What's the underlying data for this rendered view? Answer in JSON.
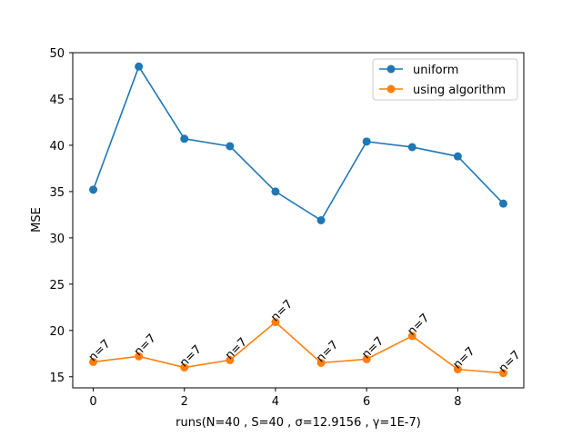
{
  "chart_data": {
    "type": "line",
    "title": "",
    "xlabel": "runs(N=40 , S=40 , σ=12.9156 , γ=1E-7)",
    "ylabel": "MSE",
    "xlim": [
      -0.45,
      9.45
    ],
    "ylim": [
      13.8,
      50
    ],
    "xticks": [
      0,
      2,
      4,
      6,
      8
    ],
    "yticks": [
      15,
      20,
      25,
      30,
      35,
      40,
      45,
      50
    ],
    "grid": false,
    "legend_position": "top-right",
    "x": [
      0,
      1,
      2,
      3,
      4,
      5,
      6,
      7,
      8,
      9
    ],
    "series": [
      {
        "name": "uniform",
        "color": "#1f77b4",
        "values": [
          35.2,
          48.5,
          40.7,
          39.9,
          35.0,
          31.9,
          40.4,
          39.8,
          38.8,
          33.7
        ]
      },
      {
        "name": "using algorithm",
        "color": "#ff7f0e",
        "values": [
          16.6,
          17.2,
          16.0,
          16.8,
          20.9,
          16.5,
          16.9,
          19.4,
          15.8,
          15.4
        ],
        "annotations": [
          "n=7",
          "n=7",
          "n=7",
          "n=7",
          "n=7",
          "n=7",
          "n=7",
          "n=7",
          "n=7",
          "n=7"
        ]
      }
    ]
  }
}
